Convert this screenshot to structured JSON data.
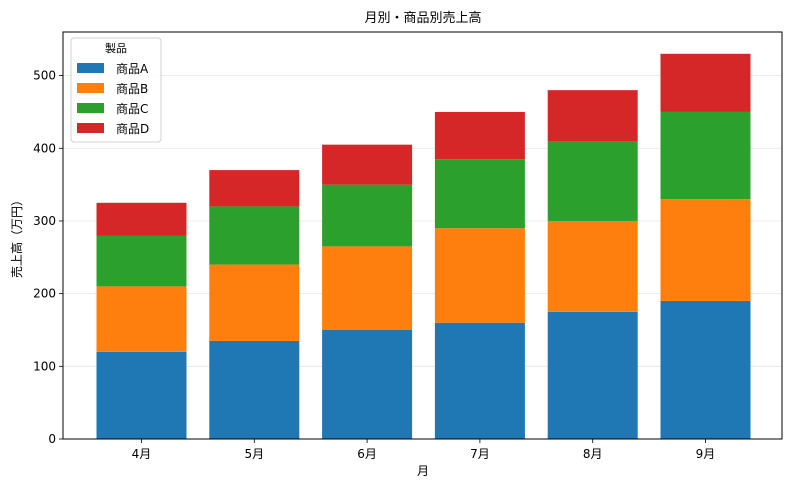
{
  "chart_data": {
    "type": "bar",
    "stacked": true,
    "title": "月別・商品別売上高",
    "xlabel": "月",
    "ylabel": "売上高（万円）",
    "categories": [
      "4月",
      "5月",
      "6月",
      "7月",
      "8月",
      "9月"
    ],
    "series": [
      {
        "name": "商品A",
        "color": "#1f77b4",
        "values": [
          120,
          135,
          150,
          160,
          175,
          190
        ]
      },
      {
        "name": "商品B",
        "color": "#ff7f0e",
        "values": [
          90,
          105,
          115,
          130,
          125,
          140
        ]
      },
      {
        "name": "商品C",
        "color": "#2ca02c",
        "values": [
          70,
          80,
          85,
          95,
          110,
          120
        ]
      },
      {
        "name": "商品D",
        "color": "#d62728",
        "values": [
          45,
          50,
          55,
          65,
          70,
          80
        ]
      }
    ],
    "ylim": [
      0,
      560
    ],
    "yticks": [
      0,
      100,
      200,
      300,
      400,
      500
    ],
    "grid": true,
    "legend": {
      "title": "製品",
      "placement": "top-left"
    }
  }
}
